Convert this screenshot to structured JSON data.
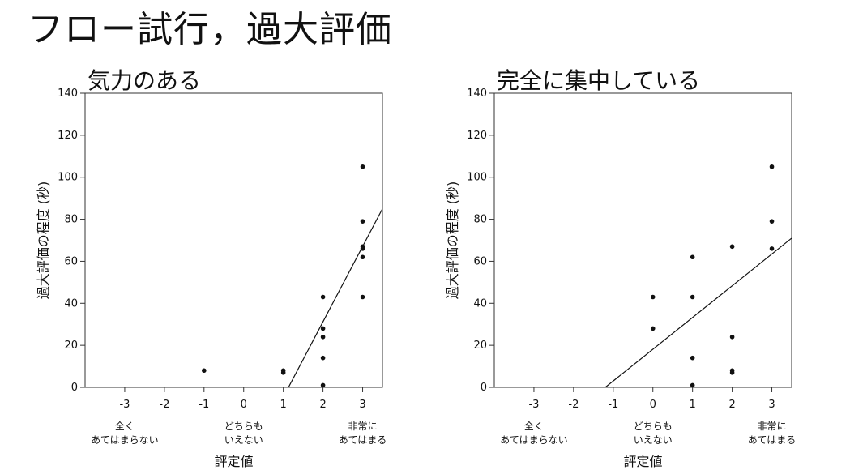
{
  "page_title": "フロー試行，過大評価",
  "chart_data": [
    {
      "type": "scatter",
      "title": "気力のある",
      "xlabel": "評定値",
      "ylabel": "過大評価の程度 (秒)",
      "xlim": [
        -4,
        3.5
      ],
      "ylim": [
        0,
        140
      ],
      "xticks": [
        -3,
        -2,
        -1,
        0,
        1,
        2,
        3
      ],
      "yticks": [
        0,
        20,
        40,
        60,
        80,
        100,
        120,
        140
      ],
      "xtick_annotations": [
        {
          "x": -3,
          "lines": [
            "全く",
            "あてはまらない"
          ]
        },
        {
          "x": 0,
          "lines": [
            "どちらも",
            "いえない"
          ]
        },
        {
          "x": 3,
          "lines": [
            "非常に",
            "あてはまる"
          ]
        }
      ],
      "points": [
        {
          "x": -1,
          "y": 8
        },
        {
          "x": 1,
          "y": 8
        },
        {
          "x": 1,
          "y": 7
        },
        {
          "x": 2,
          "y": 43
        },
        {
          "x": 2,
          "y": 28
        },
        {
          "x": 2,
          "y": 24
        },
        {
          "x": 2,
          "y": 14
        },
        {
          "x": 2,
          "y": 1
        },
        {
          "x": 3,
          "y": 105
        },
        {
          "x": 3,
          "y": 79
        },
        {
          "x": 3,
          "y": 67
        },
        {
          "x": 3,
          "y": 66
        },
        {
          "x": 3,
          "y": 62
        },
        {
          "x": 3,
          "y": 43
        }
      ],
      "fit_line": {
        "x": [
          1.13,
          3.5
        ],
        "y": [
          0,
          85
        ]
      },
      "grid": false
    },
    {
      "type": "scatter",
      "title": "完全に集中している",
      "xlabel": "評定値",
      "ylabel": "過大評価の程度 (秒)",
      "xlim": [
        -4,
        3.5
      ],
      "ylim": [
        0,
        140
      ],
      "xticks": [
        -3,
        -2,
        -1,
        0,
        1,
        2,
        3
      ],
      "yticks": [
        0,
        20,
        40,
        60,
        80,
        100,
        120,
        140
      ],
      "xtick_annotations": [
        {
          "x": -3,
          "lines": [
            "全く",
            "あてはまらない"
          ]
        },
        {
          "x": 0,
          "lines": [
            "どちらも",
            "いえない"
          ]
        },
        {
          "x": 3,
          "lines": [
            "非常に",
            "あてはまる"
          ]
        }
      ],
      "points": [
        {
          "x": 0,
          "y": 43
        },
        {
          "x": 0,
          "y": 28
        },
        {
          "x": 1,
          "y": 62
        },
        {
          "x": 1,
          "y": 43
        },
        {
          "x": 1,
          "y": 14
        },
        {
          "x": 1,
          "y": 1
        },
        {
          "x": 2,
          "y": 67
        },
        {
          "x": 2,
          "y": 24
        },
        {
          "x": 2,
          "y": 8
        },
        {
          "x": 2,
          "y": 7
        },
        {
          "x": 3,
          "y": 105
        },
        {
          "x": 3,
          "y": 79
        },
        {
          "x": 3,
          "y": 66
        }
      ],
      "fit_line": {
        "x": [
          -1.2,
          3.5
        ],
        "y": [
          0,
          71
        ]
      },
      "grid": false
    }
  ]
}
